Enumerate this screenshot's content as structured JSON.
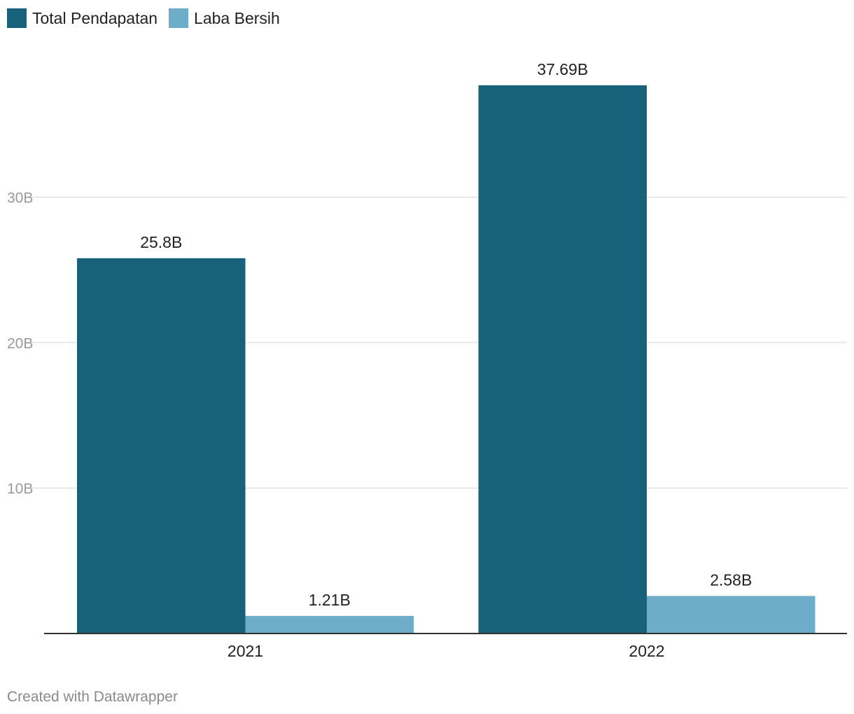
{
  "legend": {
    "items": [
      {
        "label": "Total Pendapatan",
        "color": "#18617b"
      },
      {
        "label": "Laba Bersih",
        "color": "#6dadca"
      }
    ]
  },
  "footer": {
    "credit": "Created with Datawrapper"
  },
  "chart_data": {
    "type": "bar",
    "title": "",
    "xlabel": "",
    "ylabel": "",
    "categories": [
      "2021",
      "2022"
    ],
    "series": [
      {
        "name": "Total Pendapatan",
        "values": [
          25.8,
          37.69
        ],
        "labels": [
          "25.8B",
          "37.69B"
        ],
        "color": "#18617b"
      },
      {
        "name": "Laba Bersih",
        "values": [
          1.21,
          2.58
        ],
        "labels": [
          "1.21B",
          "2.58B"
        ],
        "color": "#6dadca"
      }
    ],
    "unit": "B",
    "ylim": [
      0,
      40
    ],
    "yticks": [
      10,
      20,
      30
    ],
    "ytick_labels": [
      "10B",
      "20B",
      "30B"
    ],
    "grid": true,
    "legend_position": "top-left"
  }
}
